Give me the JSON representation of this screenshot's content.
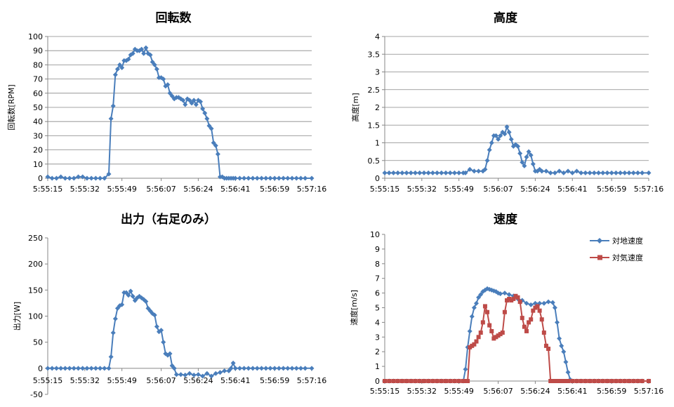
{
  "chart_data": [
    {
      "id": "rpm",
      "type": "line",
      "title": "回転数",
      "ylabel": "回転数[RPM]",
      "xlabel": "",
      "ylim": [
        0,
        100
      ],
      "yticks": [
        0,
        10,
        20,
        30,
        40,
        50,
        60,
        70,
        80,
        90,
        100
      ],
      "ytick_labels": [
        "0",
        "10",
        "20",
        "30",
        "40",
        "50",
        "60",
        "70",
        "80",
        "90",
        "100"
      ],
      "xlim": [
        "5:55:15",
        "5:57:16"
      ],
      "xticks": [
        "5:55:15",
        "5:55:32",
        "5:55:49",
        "5:56:07",
        "5:56:24",
        "5:56:41",
        "5:56:59",
        "5:57:16"
      ],
      "grid": true,
      "legend": null,
      "series": [
        {
          "name": "",
          "color": "#4a7ebb",
          "marker": "diamond",
          "x": [
            "5:55:15",
            "5:55:17",
            "5:55:19",
            "5:55:21",
            "5:55:23",
            "5:55:25",
            "5:55:27",
            "5:55:29",
            "5:55:31",
            "5:55:33",
            "5:55:35",
            "5:55:37",
            "5:55:39",
            "5:55:41",
            "5:55:43",
            "5:55:44",
            "5:55:45",
            "5:55:46",
            "5:55:47",
            "5:55:48",
            "5:55:49",
            "5:55:50",
            "5:55:51",
            "5:55:52",
            "5:55:53",
            "5:55:54",
            "5:55:55",
            "5:55:56",
            "5:55:57",
            "5:55:58",
            "5:55:59",
            "5:56:00",
            "5:56:01",
            "5:56:02",
            "5:56:03",
            "5:56:04",
            "5:56:05",
            "5:56:06",
            "5:56:07",
            "5:56:08",
            "5:56:09",
            "5:56:10",
            "5:56:11",
            "5:56:12",
            "5:56:13",
            "5:56:14",
            "5:56:15",
            "5:56:16",
            "5:56:17",
            "5:56:18",
            "5:56:19",
            "5:56:20",
            "5:56:21",
            "5:56:22",
            "5:56:23",
            "5:56:24",
            "5:56:25",
            "5:56:26",
            "5:56:27",
            "5:56:28",
            "5:56:29",
            "5:56:30",
            "5:56:31",
            "5:56:32",
            "5:56:33",
            "5:56:34",
            "5:56:35",
            "5:56:36",
            "5:56:37",
            "5:56:38",
            "5:56:39",
            "5:56:40",
            "5:56:41",
            "5:56:43",
            "5:56:45",
            "5:56:47",
            "5:56:49",
            "5:56:51",
            "5:56:53",
            "5:56:55",
            "5:56:57",
            "5:56:59",
            "5:57:01",
            "5:57:03",
            "5:57:05",
            "5:57:07",
            "5:57:09",
            "5:57:11",
            "5:57:13",
            "5:57:16"
          ],
          "y": [
            1,
            0,
            0,
            1,
            0,
            0,
            0,
            1,
            1,
            0,
            0,
            0,
            0,
            0,
            3,
            42,
            51,
            73,
            77,
            80,
            78,
            83,
            83,
            84,
            87,
            88,
            91,
            90,
            90,
            91,
            88,
            92,
            88,
            87,
            82,
            80,
            77,
            71,
            71,
            70,
            65,
            66,
            60,
            58,
            56,
            57,
            57,
            56,
            55,
            52,
            56,
            55,
            53,
            55,
            52,
            55,
            54,
            49,
            46,
            42,
            37,
            35,
            25,
            23,
            17,
            1,
            1,
            0,
            0,
            0,
            0,
            0,
            0,
            0,
            0,
            0,
            0,
            0,
            0,
            0,
            0,
            0,
            0,
            0,
            0,
            0,
            0,
            0,
            0,
            0
          ]
        }
      ]
    },
    {
      "id": "altitude",
      "type": "line",
      "title": "高度",
      "ylabel": "高度[m]",
      "xlabel": "",
      "ylim": [
        0,
        4
      ],
      "yticks": [
        0,
        0.5,
        1,
        1.5,
        2,
        2.5,
        3,
        3.5,
        4
      ],
      "ytick_labels": [
        "0",
        "0.5",
        "1",
        "1.5",
        "2",
        "2.5",
        "3",
        "3.5",
        "4"
      ],
      "xlim": [
        "5:55:15",
        "5:57:16"
      ],
      "xticks": [
        "5:55:15",
        "5:55:32",
        "5:55:49",
        "5:56:07",
        "5:56:24",
        "5:56:41",
        "5:56:59",
        "5:57:16"
      ],
      "grid": true,
      "legend": null,
      "series": [
        {
          "name": "",
          "color": "#4a7ebb",
          "marker": "diamond",
          "x": [
            "5:55:15",
            "5:55:17",
            "5:55:19",
            "5:55:21",
            "5:55:23",
            "5:55:25",
            "5:55:27",
            "5:55:29",
            "5:55:31",
            "5:55:33",
            "5:55:35",
            "5:55:37",
            "5:55:39",
            "5:55:41",
            "5:55:43",
            "5:55:45",
            "5:55:47",
            "5:55:49",
            "5:55:51",
            "5:55:52",
            "5:55:54",
            "5:55:56",
            "5:55:58",
            "5:56:00",
            "5:56:01",
            "5:56:02",
            "5:56:03",
            "5:56:04",
            "5:56:05",
            "5:56:06",
            "5:56:07",
            "5:56:08",
            "5:56:09",
            "5:56:10",
            "5:56:11",
            "5:56:12",
            "5:56:13",
            "5:56:14",
            "5:56:15",
            "5:56:16",
            "5:56:17",
            "5:56:18",
            "5:56:19",
            "5:56:20",
            "5:56:21",
            "5:56:22",
            "5:56:23",
            "5:56:24",
            "5:56:25",
            "5:56:26",
            "5:56:27",
            "5:56:29",
            "5:56:31",
            "5:56:33",
            "5:56:35",
            "5:56:37",
            "5:56:39",
            "5:56:41",
            "5:56:43",
            "5:56:45",
            "5:56:47",
            "5:56:49",
            "5:56:51",
            "5:56:53",
            "5:56:55",
            "5:56:57",
            "5:56:59",
            "5:57:01",
            "5:57:03",
            "5:57:05",
            "5:57:07",
            "5:57:09",
            "5:57:11",
            "5:57:13",
            "5:57:16"
          ],
          "y": [
            0.15,
            0.15,
            0.15,
            0.15,
            0.15,
            0.15,
            0.15,
            0.15,
            0.15,
            0.15,
            0.15,
            0.15,
            0.15,
            0.15,
            0.15,
            0.15,
            0.15,
            0.15,
            0.15,
            0.15,
            0.25,
            0.2,
            0.2,
            0.2,
            0.25,
            0.5,
            0.8,
            1.0,
            1.2,
            1.2,
            1.1,
            1.2,
            1.3,
            1.25,
            1.45,
            1.3,
            1.1,
            0.9,
            0.95,
            0.9,
            0.7,
            0.45,
            0.35,
            0.6,
            0.75,
            0.65,
            0.4,
            0.2,
            0.2,
            0.25,
            0.2,
            0.2,
            0.15,
            0.15,
            0.2,
            0.15,
            0.2,
            0.15,
            0.2,
            0.15,
            0.15,
            0.15,
            0.15,
            0.15,
            0.15,
            0.15,
            0.15,
            0.15,
            0.15,
            0.15,
            0.15,
            0.15,
            0.15,
            0.15,
            0.15
          ]
        }
      ]
    },
    {
      "id": "power",
      "type": "line",
      "title": "出力（右足のみ）",
      "ylabel": "出力[W]",
      "xlabel": "",
      "ylim": [
        -50,
        250
      ],
      "yticks": [
        -50,
        0,
        50,
        100,
        150,
        200,
        250
      ],
      "ytick_labels": [
        "-50",
        "0",
        "50",
        "100",
        "150",
        "200",
        "250"
      ],
      "xlim": [
        "5:55:15",
        "5:57:16"
      ],
      "xticks": [
        "5:55:15",
        "5:55:32",
        "5:55:49",
        "5:56:07",
        "5:56:24",
        "5:56:41",
        "5:56:59",
        "5:57:16"
      ],
      "grid": false,
      "legend": null,
      "series": [
        {
          "name": "",
          "color": "#4a7ebb",
          "marker": "diamond",
          "x": [
            "5:55:15",
            "5:55:17",
            "5:55:19",
            "5:55:21",
            "5:55:23",
            "5:55:25",
            "5:55:27",
            "5:55:29",
            "5:55:31",
            "5:55:33",
            "5:55:35",
            "5:55:37",
            "5:55:39",
            "5:55:41",
            "5:55:43",
            "5:55:44",
            "5:55:45",
            "5:55:46",
            "5:55:47",
            "5:55:48",
            "5:55:49",
            "5:55:50",
            "5:55:51",
            "5:55:52",
            "5:55:53",
            "5:55:54",
            "5:55:55",
            "5:55:56",
            "5:55:57",
            "5:55:58",
            "5:55:59",
            "5:56:00",
            "5:56:01",
            "5:56:02",
            "5:56:03",
            "5:56:04",
            "5:56:05",
            "5:56:06",
            "5:56:07",
            "5:56:08",
            "5:56:09",
            "5:56:10",
            "5:56:11",
            "5:56:12",
            "5:56:13",
            "5:56:14",
            "5:56:16",
            "5:56:18",
            "5:56:20",
            "5:56:22",
            "5:56:24",
            "5:56:26",
            "5:56:28",
            "5:56:30",
            "5:56:32",
            "5:56:34",
            "5:56:36",
            "5:56:38",
            "5:56:39",
            "5:56:40",
            "5:56:41",
            "5:56:43",
            "5:56:45",
            "5:56:47",
            "5:56:49",
            "5:56:51",
            "5:56:53",
            "5:56:55",
            "5:56:57",
            "5:56:59",
            "5:57:01",
            "5:57:03",
            "5:57:05",
            "5:57:07",
            "5:57:09",
            "5:57:11",
            "5:57:13",
            "5:57:16"
          ],
          "y": [
            0,
            0,
            0,
            0,
            0,
            0,
            0,
            0,
            0,
            0,
            0,
            0,
            0,
            0,
            0,
            22,
            68,
            95,
            115,
            120,
            122,
            145,
            145,
            140,
            148,
            138,
            130,
            135,
            138,
            135,
            132,
            128,
            115,
            110,
            105,
            102,
            80,
            70,
            73,
            50,
            28,
            25,
            28,
            5,
            0,
            -12,
            -12,
            -13,
            -10,
            -13,
            -12,
            -15,
            -10,
            -15,
            -10,
            -8,
            -5,
            -5,
            0,
            10,
            0,
            0,
            0,
            0,
            0,
            0,
            0,
            0,
            0,
            0,
            0,
            0,
            0,
            0,
            0,
            0,
            0,
            0
          ]
        }
      ]
    },
    {
      "id": "speed",
      "type": "line",
      "title": "速度",
      "ylabel": "速度[m/s]",
      "xlabel": "",
      "ylim": [
        0,
        10
      ],
      "yticks": [
        0,
        1,
        2,
        3,
        4,
        5,
        6,
        7,
        8,
        9,
        10
      ],
      "ytick_labels": [
        "0",
        "1",
        "2",
        "3",
        "4",
        "5",
        "6",
        "7",
        "8",
        "9",
        "10"
      ],
      "xlim": [
        "5:55:15",
        "5:57:16"
      ],
      "xticks": [
        "5:55:15",
        "5:55:32",
        "5:55:49",
        "5:56:07",
        "5:56:24",
        "5:56:41",
        "5:56:59",
        "5:57:16"
      ],
      "grid": false,
      "legend": "top-right",
      "series": [
        {
          "name": "対地速度",
          "color": "#4a7ebb",
          "marker": "diamond",
          "x": [
            "5:55:15",
            "5:55:17",
            "5:55:19",
            "5:55:21",
            "5:55:23",
            "5:55:25",
            "5:55:27",
            "5:55:29",
            "5:55:31",
            "5:55:33",
            "5:55:35",
            "5:55:37",
            "5:55:39",
            "5:55:41",
            "5:55:43",
            "5:55:45",
            "5:55:47",
            "5:55:49",
            "5:55:51",
            "5:55:52",
            "5:55:53",
            "5:55:54",
            "5:55:55",
            "5:55:56",
            "5:55:57",
            "5:55:58",
            "5:55:59",
            "5:56:00",
            "5:56:01",
            "5:56:02",
            "5:56:03",
            "5:56:04",
            "5:56:05",
            "5:56:06",
            "5:56:07",
            "5:56:08",
            "5:56:10",
            "5:56:12",
            "5:56:14",
            "5:56:16",
            "5:56:18",
            "5:56:20",
            "5:56:22",
            "5:56:24",
            "5:56:26",
            "5:56:28",
            "5:56:30",
            "5:56:32",
            "5:56:33",
            "5:56:34",
            "5:56:35",
            "5:56:36",
            "5:56:37",
            "5:56:38",
            "5:56:39",
            "5:56:40",
            "5:56:41",
            "5:56:43",
            "5:56:45",
            "5:56:47",
            "5:56:49",
            "5:56:51",
            "5:56:53",
            "5:56:55",
            "5:56:57",
            "5:56:59",
            "5:57:01",
            "5:57:03",
            "5:57:05",
            "5:57:07",
            "5:57:09",
            "5:57:11",
            "5:57:13",
            "5:57:16"
          ],
          "y": [
            0,
            0,
            0,
            0,
            0,
            0,
            0,
            0,
            0,
            0,
            0,
            0,
            0,
            0,
            0,
            0,
            0,
            0,
            0,
            0.8,
            2.3,
            3.4,
            4.4,
            5.0,
            5.3,
            5.7,
            5.9,
            6.1,
            6.2,
            6.3,
            6.25,
            6.2,
            6.15,
            6.1,
            6.0,
            5.95,
            6.0,
            5.9,
            5.8,
            5.6,
            5.5,
            5.3,
            5.2,
            5.3,
            5.3,
            5.3,
            5.4,
            5.35,
            5.0,
            4.0,
            2.9,
            2.4,
            2.0,
            1.3,
            0.6,
            0.1,
            0,
            0,
            0,
            0,
            0,
            0,
            0,
            0,
            0,
            0,
            0,
            0,
            0,
            0,
            0,
            0,
            0,
            0
          ]
        },
        {
          "name": "対気速度",
          "color": "#be4b48",
          "marker": "square",
          "x": [
            "5:55:15",
            "5:55:17",
            "5:55:19",
            "5:55:21",
            "5:55:23",
            "5:55:25",
            "5:55:27",
            "5:55:29",
            "5:55:31",
            "5:55:33",
            "5:55:35",
            "5:55:37",
            "5:55:39",
            "5:55:41",
            "5:55:43",
            "5:55:45",
            "5:55:47",
            "5:55:49",
            "5:55:51",
            "5:55:52",
            "5:55:53",
            "5:55:54",
            "5:55:55",
            "5:55:56",
            "5:55:57",
            "5:55:58",
            "5:55:59",
            "5:56:00",
            "5:56:01",
            "5:56:02",
            "5:56:03",
            "5:56:04",
            "5:56:05",
            "5:56:06",
            "5:56:07",
            "5:56:08",
            "5:56:09",
            "5:56:10",
            "5:56:11",
            "5:56:12",
            "5:56:13",
            "5:56:14",
            "5:56:15",
            "5:56:16",
            "5:56:17",
            "5:56:18",
            "5:56:19",
            "5:56:20",
            "5:56:21",
            "5:56:22",
            "5:56:23",
            "5:56:24",
            "5:56:25",
            "5:56:26",
            "5:56:27",
            "5:56:28",
            "5:56:29",
            "5:56:30",
            "5:56:31",
            "5:56:32",
            "5:56:33",
            "5:56:34",
            "5:56:35",
            "5:56:36",
            "5:56:37",
            "5:56:38",
            "5:56:39",
            "5:56:41",
            "5:56:43",
            "5:56:45",
            "5:56:47",
            "5:56:49",
            "5:56:51",
            "5:56:53",
            "5:56:55",
            "5:56:57",
            "5:56:59",
            "5:57:01",
            "5:57:03",
            "5:57:05",
            "5:57:07",
            "5:57:09",
            "5:57:11",
            "5:57:13",
            "5:57:16"
          ],
          "y": [
            0,
            0,
            0,
            0,
            0,
            0,
            0,
            0,
            0,
            0,
            0,
            0,
            0,
            0,
            0,
            0,
            0,
            0,
            0,
            0,
            0,
            2.3,
            2.4,
            2.5,
            2.7,
            3.0,
            3.3,
            4.0,
            5.1,
            4.7,
            3.8,
            3.4,
            2.9,
            3.0,
            3.1,
            3.2,
            3.3,
            4.7,
            5.5,
            5.6,
            5.5,
            5.6,
            5.8,
            5.7,
            5.4,
            4.3,
            3.7,
            3.4,
            4.0,
            4.2,
            4.8,
            5.0,
            5.1,
            4.8,
            4.2,
            3.3,
            2.4,
            2.2,
            0,
            0,
            0,
            0,
            0,
            0,
            0,
            0,
            0,
            0,
            0,
            0,
            0,
            0,
            0,
            0,
            0,
            0,
            0,
            0,
            0,
            0,
            0,
            0,
            0,
            0,
            0
          ]
        }
      ]
    }
  ]
}
